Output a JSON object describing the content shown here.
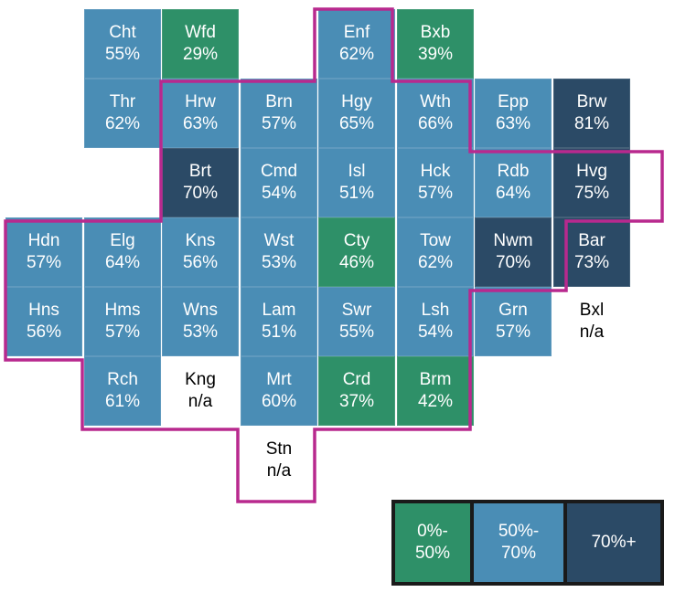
{
  "colors": {
    "low": "#2e9068",
    "mid": "#4a8db5",
    "high": "#2b4a66",
    "na": "#ffffff",
    "boundary": "#b8298e"
  },
  "tiles": [
    {
      "code": "Cht",
      "value": "55%",
      "band": "mid",
      "row": 0,
      "col": 1
    },
    {
      "code": "Wfd",
      "value": "29%",
      "band": "low",
      "row": 0,
      "col": 2
    },
    {
      "code": "Enf",
      "value": "62%",
      "band": "mid",
      "row": 0,
      "col": 4
    },
    {
      "code": "Bxb",
      "value": "39%",
      "band": "low",
      "row": 0,
      "col": 5
    },
    {
      "code": "Thr",
      "value": "62%",
      "band": "mid",
      "row": 1,
      "col": 1
    },
    {
      "code": "Hrw",
      "value": "63%",
      "band": "mid",
      "row": 1,
      "col": 2
    },
    {
      "code": "Brn",
      "value": "57%",
      "band": "mid",
      "row": 1,
      "col": 3
    },
    {
      "code": "Hgy",
      "value": "65%",
      "band": "mid",
      "row": 1,
      "col": 4
    },
    {
      "code": "Wth",
      "value": "66%",
      "band": "mid",
      "row": 1,
      "col": 5
    },
    {
      "code": "Epp",
      "value": "63%",
      "band": "mid",
      "row": 1,
      "col": 6
    },
    {
      "code": "Brw",
      "value": "81%",
      "band": "high",
      "row": 1,
      "col": 7
    },
    {
      "code": "Brt",
      "value": "70%",
      "band": "high",
      "row": 2,
      "col": 2
    },
    {
      "code": "Cmd",
      "value": "54%",
      "band": "mid",
      "row": 2,
      "col": 3
    },
    {
      "code": "Isl",
      "value": "51%",
      "band": "mid",
      "row": 2,
      "col": 4
    },
    {
      "code": "Hck",
      "value": "57%",
      "band": "mid",
      "row": 2,
      "col": 5
    },
    {
      "code": "Rdb",
      "value": "64%",
      "band": "mid",
      "row": 2,
      "col": 6
    },
    {
      "code": "Hvg",
      "value": "75%",
      "band": "high",
      "row": 2,
      "col": 7
    },
    {
      "code": "Hdn",
      "value": "57%",
      "band": "mid",
      "row": 3,
      "col": 0
    },
    {
      "code": "Elg",
      "value": "64%",
      "band": "mid",
      "row": 3,
      "col": 1
    },
    {
      "code": "Kns",
      "value": "56%",
      "band": "mid",
      "row": 3,
      "col": 2
    },
    {
      "code": "Wst",
      "value": "53%",
      "band": "mid",
      "row": 3,
      "col": 3
    },
    {
      "code": "Cty",
      "value": "46%",
      "band": "low",
      "row": 3,
      "col": 4
    },
    {
      "code": "Tow",
      "value": "62%",
      "band": "mid",
      "row": 3,
      "col": 5
    },
    {
      "code": "Nwm",
      "value": "70%",
      "band": "high",
      "row": 3,
      "col": 6
    },
    {
      "code": "Bar",
      "value": "73%",
      "band": "high",
      "row": 3,
      "col": 7
    },
    {
      "code": "Hns",
      "value": "56%",
      "band": "mid",
      "row": 4,
      "col": 0
    },
    {
      "code": "Hms",
      "value": "57%",
      "band": "mid",
      "row": 4,
      "col": 1
    },
    {
      "code": "Wns",
      "value": "53%",
      "band": "mid",
      "row": 4,
      "col": 2
    },
    {
      "code": "Lam",
      "value": "51%",
      "band": "mid",
      "row": 4,
      "col": 3
    },
    {
      "code": "Swr",
      "value": "55%",
      "band": "mid",
      "row": 4,
      "col": 4
    },
    {
      "code": "Lsh",
      "value": "54%",
      "band": "mid",
      "row": 4,
      "col": 5
    },
    {
      "code": "Grn",
      "value": "57%",
      "band": "mid",
      "row": 4,
      "col": 6
    },
    {
      "code": "Bxl",
      "value": "n/a",
      "band": "na",
      "row": 4,
      "col": 7
    },
    {
      "code": "Rch",
      "value": "61%",
      "band": "mid",
      "row": 5,
      "col": 1
    },
    {
      "code": "Kng",
      "value": "n/a",
      "band": "na",
      "row": 5,
      "col": 2
    },
    {
      "code": "Mrt",
      "value": "60%",
      "band": "mid",
      "row": 5,
      "col": 3
    },
    {
      "code": "Crd",
      "value": "37%",
      "band": "low",
      "row": 5,
      "col": 4
    },
    {
      "code": "Brm",
      "value": "42%",
      "band": "low",
      "row": 5,
      "col": 5
    },
    {
      "code": "Stn",
      "value": "n/a",
      "band": "na",
      "row": 6,
      "col": 3
    }
  ],
  "legend": [
    {
      "band": "low",
      "label": "0%-\n50%"
    },
    {
      "band": "mid",
      "label": "50%-\n70%"
    },
    {
      "band": "high",
      "label": "70%+"
    }
  ]
}
